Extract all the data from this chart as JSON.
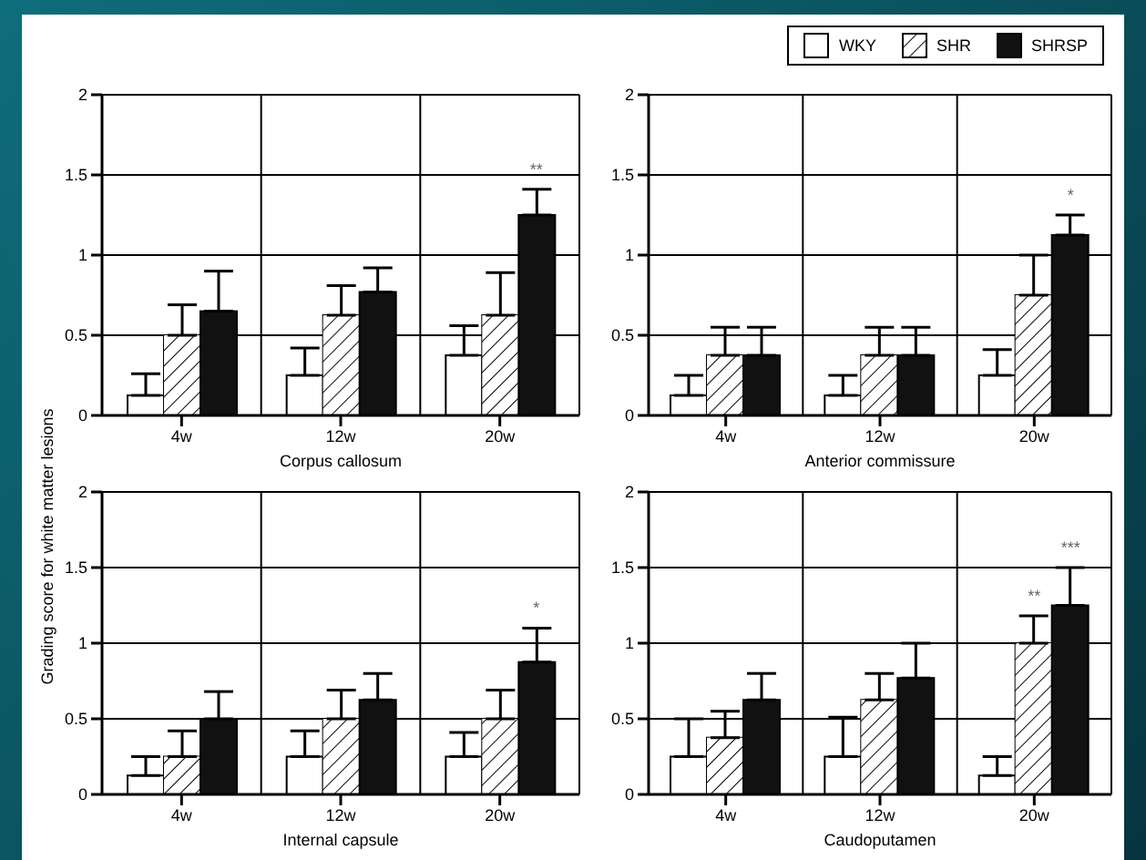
{
  "chart_data": [
    {
      "type": "bar",
      "xlabel": "Corpus callosum",
      "ylabel": "Grading score for white matter lesions",
      "categories": [
        "4w",
        "12w",
        "20w"
      ],
      "series": [
        {
          "color": "#ffffff",
          "values": [
            0.125,
            0.25,
            0.375
          ],
          "errors": [
            [
              0.125,
              0.26
            ],
            [
              0.25,
              0.42
            ],
            [
              0.375,
              0.56
            ]
          ]
        },
        {
          "color": "#ffffff",
          "values": [
            0.5,
            0.625,
            0.625
          ],
          "errors": [
            [
              0.5,
              0.69
            ],
            [
              0.625,
              0.81
            ],
            [
              0.625,
              0.89
            ]
          ]
        },
        {
          "color": "#111111",
          "values": [
            0.65,
            0.77,
            1.25
          ],
          "errors": [
            [
              0.65,
              0.9
            ],
            [
              0.77,
              0.92
            ],
            [
              1.25,
              1.41
            ]
          ]
        }
      ],
      "ylim": [
        0,
        2
      ],
      "yticks": [
        0,
        0.5,
        1,
        1.5,
        2
      ],
      "grid": true,
      "annotations": [
        "**"
      ]
    },
    {
      "type": "bar",
      "xlabel": "Anterior commissure",
      "categories": [
        "4w",
        "12w",
        "20w"
      ],
      "series": [
        {
          "name": "WKY",
          "color": "#ffffff",
          "values": [
            0.125,
            0.125,
            0.25
          ],
          "errors": [
            [
              0.125,
              0.25
            ],
            [
              0.125,
              0.25
            ],
            [
              0.25,
              0.41
            ]
          ]
        },
        {
          "name": "SHR",
          "color": "#ffffff",
          "values": [
            0.375,
            0.375,
            0.75
          ],
          "errors": [
            [
              0.375,
              0.55
            ],
            [
              0.375,
              0.55
            ],
            [
              0.75,
              1.0
            ]
          ]
        },
        {
          "name": "SHRSP",
          "color": "#111111",
          "values": [
            0.375,
            0.375,
            1.125
          ],
          "errors": [
            [
              0.375,
              0.55
            ],
            [
              0.375,
              0.55
            ],
            [
              1.125,
              1.25
            ]
          ]
        }
      ],
      "ylim": [
        0,
        2
      ],
      "yticks": [
        0,
        0.5,
        1,
        1.5,
        2
      ],
      "grid": true,
      "legend": "top right",
      "annotations": [
        "*"
      ]
    },
    {
      "type": "bar",
      "xlabel": "Internal capsule",
      "categories": [
        "4w",
        "12w",
        "20w"
      ],
      "series": [
        {
          "color": "#ffffff",
          "values": [
            0.125,
            0.25,
            0.25
          ],
          "errors": [
            [
              0.125,
              0.25
            ],
            [
              0.25,
              0.42
            ],
            [
              0.25,
              0.41
            ]
          ]
        },
        {
          "color": "#ffffff",
          "values": [
            0.25,
            0.5,
            0.5
          ],
          "errors": [
            [
              0.25,
              0.42
            ],
            [
              0.5,
              0.69
            ],
            [
              0.5,
              0.69
            ]
          ]
        },
        {
          "color": "#111111",
          "values": [
            0.5,
            0.625,
            0.875
          ],
          "errors": [
            [
              0.5,
              0.68
            ],
            [
              0.625,
              0.8
            ],
            [
              0.875,
              1.1
            ]
          ]
        }
      ],
      "ylim": [
        0,
        2
      ],
      "yticks": [
        0,
        0.5,
        1,
        1.5,
        2
      ],
      "grid": true,
      "annotations": [
        "*"
      ]
    },
    {
      "type": "bar",
      "xlabel": "Caudoputamen",
      "categories": [
        "4w",
        "12w",
        "20w"
      ],
      "series": [
        {
          "color": "#ffffff",
          "values": [
            0.25,
            0.25,
            0.125
          ],
          "errors": [
            [
              0.25,
              0.5
            ],
            [
              0.25,
              0.51
            ],
            [
              0.125,
              0.25
            ]
          ]
        },
        {
          "color": "#ffffff",
          "values": [
            0.375,
            0.625,
            1.0
          ],
          "errors": [
            [
              0.375,
              0.55
            ],
            [
              0.625,
              0.8
            ],
            [
              1.0,
              1.18
            ]
          ]
        },
        {
          "color": "#111111",
          "values": [
            0.625,
            0.77,
            1.25
          ],
          "errors": [
            [
              0.625,
              0.8
            ],
            [
              0.77,
              1.0
            ],
            [
              1.25,
              1.5
            ]
          ]
        }
      ],
      "ylim": [
        0,
        2
      ],
      "yticks": [
        0,
        0.5,
        1,
        1.5,
        2
      ],
      "grid": true,
      "annotations": [
        "**",
        "***"
      ]
    }
  ]
}
